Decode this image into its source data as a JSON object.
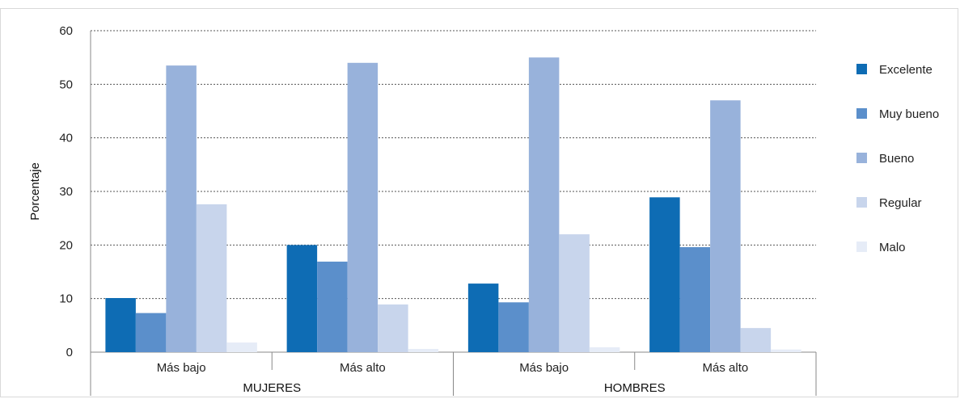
{
  "chart_data": {
    "type": "bar",
    "ylabel": "Porcentaje",
    "ylim": [
      0,
      60
    ],
    "yticks": [
      "0",
      "10",
      "20",
      "30",
      "40",
      "50",
      "60"
    ],
    "grid": true,
    "legend_position": "right",
    "groups": [
      {
        "label": "MUJERES",
        "categories": [
          "Más bajo",
          "Más alto"
        ]
      },
      {
        "label": "HOMBRES",
        "categories": [
          "Más bajo",
          "Más alto"
        ]
      }
    ],
    "categories": [
      "Más bajo",
      "Más alto",
      "Más bajo",
      "Más alto"
    ],
    "series": [
      {
        "name": "Excelente",
        "color": "#0e6cb4",
        "values": [
          10.1,
          20.0,
          12.8,
          28.9
        ]
      },
      {
        "name": "Muy bueno",
        "color": "#5b8fcb",
        "values": [
          7.3,
          16.9,
          9.3,
          19.6
        ]
      },
      {
        "name": "Bueno",
        "color": "#98b2db",
        "values": [
          53.5,
          54.0,
          55.0,
          47.0
        ]
      },
      {
        "name": "Regular",
        "color": "#c8d5ec",
        "values": [
          27.6,
          8.9,
          22.0,
          4.5
        ]
      },
      {
        "name": "Malo",
        "color": "#e6ecf7",
        "values": [
          1.8,
          0.6,
          0.9,
          0.5
        ]
      }
    ]
  }
}
